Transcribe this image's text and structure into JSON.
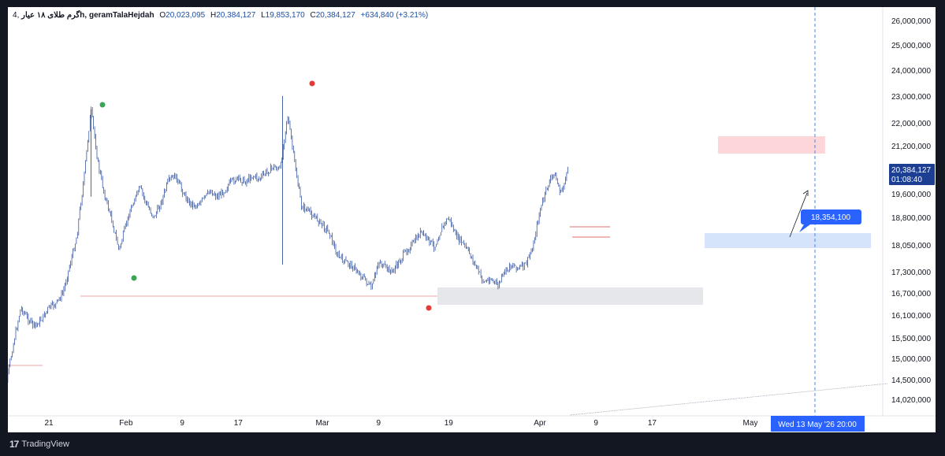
{
  "header": {
    "interval": "4",
    "symbol": "گرم طلای ۱۸ عیار",
    "suffix": "h, geramTalaHejdah",
    "o_label": "O",
    "o_value": "20,023,095",
    "h_label": "H",
    "h_value": "20,384,127",
    "l_label": "L",
    "l_value": "19,853,170",
    "c_label": "C",
    "c_value": "20,384,127",
    "change": "+634,840 (+3.21%)"
  },
  "footer": {
    "brand": "TradingView",
    "logo_icon": "tradingview-logo-icon"
  },
  "chart_data": {
    "type": "candlestick",
    "y_ticks": [
      {
        "v": 26000000,
        "label": "26,000,000"
      },
      {
        "v": 25000000,
        "label": "25,000,000"
      },
      {
        "v": 24000000,
        "label": "24,000,000"
      },
      {
        "v": 23000000,
        "label": "23,000,000"
      },
      {
        "v": 22000000,
        "label": "22,000,000"
      },
      {
        "v": 21200000,
        "label": "21,200,000"
      },
      {
        "v": 19600000,
        "label": "19,600,000"
      },
      {
        "v": 18800000,
        "label": "18,800,000"
      },
      {
        "v": 18050000,
        "label": "18,050,000"
      },
      {
        "v": 17300000,
        "label": "17,300,000"
      },
      {
        "v": 16700000,
        "label": "16,700,000"
      },
      {
        "v": 16100000,
        "label": "16,100,000"
      },
      {
        "v": 15500000,
        "label": "15,500,000"
      },
      {
        "v": 15000000,
        "label": "15,000,000"
      },
      {
        "v": 14500000,
        "label": "14,500,000"
      },
      {
        "v": 14020000,
        "label": "14,020,000"
      }
    ],
    "x_ticks": [
      {
        "day": 21,
        "label": "21"
      },
      {
        "day": 32,
        "label": "Feb"
      },
      {
        "day": 40,
        "label": "9"
      },
      {
        "day": 48,
        "label": "17"
      },
      {
        "day": 60,
        "label": "Mar"
      },
      {
        "day": 68,
        "label": "9"
      },
      {
        "day": 78,
        "label": "19"
      },
      {
        "day": 91,
        "label": "Apr"
      },
      {
        "day": 99,
        "label": "9"
      },
      {
        "day": 107,
        "label": "17"
      },
      {
        "day": 121,
        "label": "May"
      }
    ],
    "price_path": [
      [
        14,
        14800000
      ],
      [
        15,
        14500000
      ],
      [
        16,
        15400000
      ],
      [
        17,
        16300000
      ],
      [
        18,
        16000000
      ],
      [
        19,
        15800000
      ],
      [
        20,
        16000000
      ],
      [
        21,
        16300000
      ],
      [
        22,
        16400000
      ],
      [
        23,
        16700000
      ],
      [
        24,
        17500000
      ],
      [
        25,
        18300000
      ],
      [
        26,
        20100000
      ],
      [
        27,
        22500000
      ],
      [
        28,
        20600000
      ],
      [
        29,
        19500000
      ],
      [
        30,
        18700000
      ],
      [
        31,
        17900000
      ],
      [
        32,
        18600000
      ],
      [
        33,
        19300000
      ],
      [
        34,
        19800000
      ],
      [
        35,
        19200000
      ],
      [
        36,
        18800000
      ],
      [
        37,
        19300000
      ],
      [
        38,
        20000000
      ],
      [
        39,
        20200000
      ],
      [
        40,
        19700000
      ],
      [
        41,
        19300000
      ],
      [
        42,
        19200000
      ],
      [
        43,
        19400000
      ],
      [
        44,
        19700000
      ],
      [
        45,
        19500000
      ],
      [
        46,
        19700000
      ],
      [
        47,
        20000000
      ],
      [
        48,
        20100000
      ],
      [
        49,
        20000000
      ],
      [
        50,
        20200000
      ],
      [
        51,
        20100000
      ],
      [
        52,
        20300000
      ],
      [
        53,
        20500000
      ],
      [
        54,
        20400000
      ],
      [
        55,
        22300000
      ],
      [
        56,
        20700000
      ],
      [
        57,
        19200000
      ],
      [
        58,
        19000000
      ],
      [
        59,
        18800000
      ],
      [
        60,
        18600000
      ],
      [
        61,
        18400000
      ],
      [
        62,
        17800000
      ],
      [
        63,
        17600000
      ],
      [
        64,
        17500000
      ],
      [
        65,
        17300000
      ],
      [
        66,
        17100000
      ],
      [
        67,
        16800000
      ],
      [
        68,
        17600000
      ],
      [
        69,
        17400000
      ],
      [
        70,
        17300000
      ],
      [
        71,
        17600000
      ],
      [
        72,
        17900000
      ],
      [
        73,
        18100000
      ],
      [
        74,
        18400000
      ],
      [
        75,
        18200000
      ],
      [
        76,
        18000000
      ],
      [
        77,
        18500000
      ],
      [
        78,
        18800000
      ],
      [
        79,
        18300000
      ],
      [
        80,
        18100000
      ],
      [
        81,
        17800000
      ],
      [
        82,
        17400000
      ],
      [
        83,
        17000000
      ],
      [
        84,
        17100000
      ],
      [
        85,
        16900000
      ],
      [
        86,
        17300000
      ],
      [
        87,
        17500000
      ],
      [
        88,
        17400000
      ],
      [
        89,
        17500000
      ],
      [
        90,
        18000000
      ],
      [
        91,
        19000000
      ],
      [
        92,
        19800000
      ],
      [
        93,
        20300000
      ],
      [
        94,
        19600000
      ],
      [
        95,
        20384127
      ]
    ],
    "highlight_label": "18,354,100",
    "current_price_label": "20,384,127",
    "countdown_label": "01:08:40",
    "crosshair_date_label": "Wed 13 May '26   20:00"
  }
}
